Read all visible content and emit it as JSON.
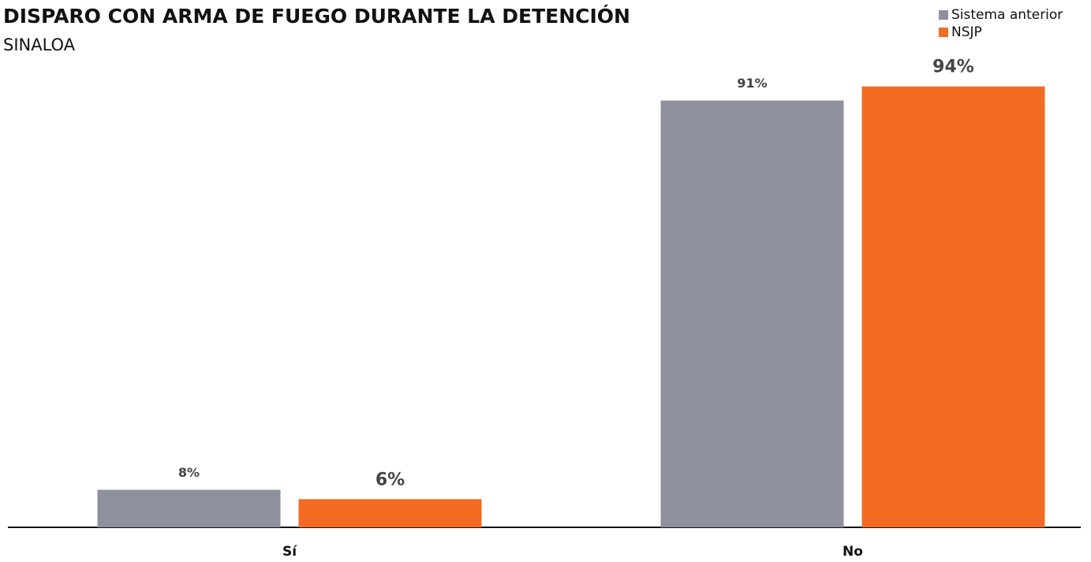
{
  "chart_data": {
    "type": "bar",
    "title": "DISPARO CON ARMA DE FUEGO DURANTE LA DETENCIÓN",
    "subtitle": "SINALOA",
    "categories": [
      "Sí",
      "No"
    ],
    "series": [
      {
        "name": "Sistema anterior",
        "color": "#8e919d",
        "values": [
          8,
          91
        ],
        "value_labels": [
          "8%",
          "91%"
        ]
      },
      {
        "name": "NSJP",
        "color": "#f26b21",
        "values": [
          6,
          94
        ],
        "value_labels": [
          "6%",
          "94%"
        ]
      }
    ],
    "ylim": [
      0,
      100
    ],
    "legend": "top-right"
  }
}
